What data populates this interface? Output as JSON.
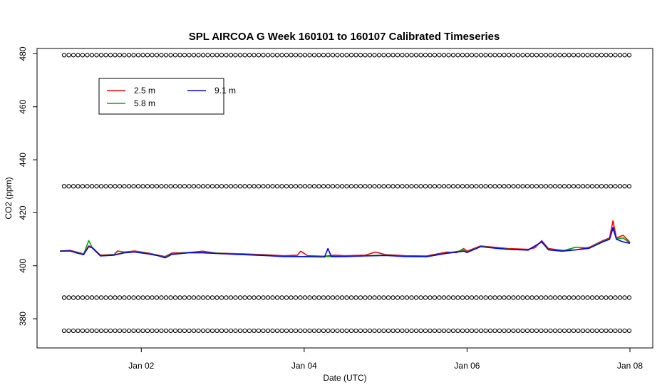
{
  "chart_data": {
    "type": "line",
    "title": "SPL AIRCOA G  Week 160101 to 160107  Calibrated Timeseries",
    "xlabel": "Date (UTC)",
    "ylabel": "CO2 (ppm)",
    "xlim": [
      "2016-01-01T00:00",
      "2016-01-08T00:00"
    ],
    "ylim": [
      369,
      482
    ],
    "x_ticks": [
      {
        "date": "2016-01-02T00:00",
        "label": "Jan 02"
      },
      {
        "date": "2016-01-04T00:00",
        "label": "Jan 04"
      },
      {
        "date": "2016-01-06T00:00",
        "label": "Jan 06"
      },
      {
        "date": "2016-01-08T00:00",
        "label": "Jan 08"
      }
    ],
    "y_ticks": [
      380,
      400,
      420,
      440,
      460,
      480
    ],
    "legend": {
      "placement": "top-left",
      "entries": [
        {
          "label": "2.5 m",
          "color": "#ff0000"
        },
        {
          "label": "9.1 m",
          "color": "#0000ff"
        },
        {
          "label": "5.8 m",
          "color": "#00aa00"
        }
      ]
    },
    "series": [
      {
        "name": "2.5 m",
        "color": "#ff0000",
        "points": [
          [
            "2016-01-01T00:00",
            405.6
          ],
          [
            "2016-01-01T03:00",
            405.8
          ],
          [
            "2016-01-01T05:00",
            405.2
          ],
          [
            "2016-01-01T07:00",
            404.5
          ],
          [
            "2016-01-01T08:30",
            407.5
          ],
          [
            "2016-01-01T09:30",
            407.0
          ],
          [
            "2016-01-01T12:00",
            404.0
          ],
          [
            "2016-01-01T16:00",
            404.3
          ],
          [
            "2016-01-01T17:00",
            405.6
          ],
          [
            "2016-01-01T19:00",
            405.2
          ],
          [
            "2016-01-01T22:00",
            405.6
          ],
          [
            "2016-01-02T02:00",
            404.8
          ],
          [
            "2016-01-02T05:00",
            404.0
          ],
          [
            "2016-01-02T07:00",
            403.5
          ],
          [
            "2016-01-02T09:00",
            404.8
          ],
          [
            "2016-01-02T14:00",
            405.0
          ],
          [
            "2016-01-02T18:00",
            405.5
          ],
          [
            "2016-01-02T22:00",
            404.8
          ],
          [
            "2016-01-03T06:00",
            404.5
          ],
          [
            "2016-01-03T12:00",
            404.2
          ],
          [
            "2016-01-03T18:00",
            403.8
          ],
          [
            "2016-01-03T22:00",
            404.0
          ],
          [
            "2016-01-03T23:00",
            405.5
          ],
          [
            "2016-01-04T01:00",
            403.8
          ],
          [
            "2016-01-04T06:00",
            403.6
          ],
          [
            "2016-01-04T09:00",
            404.0
          ],
          [
            "2016-01-04T12:00",
            403.8
          ],
          [
            "2016-01-04T18:00",
            404.0
          ],
          [
            "2016-01-04T21:00",
            405.2
          ],
          [
            "2016-01-05T00:00",
            404.2
          ],
          [
            "2016-01-05T06:00",
            403.8
          ],
          [
            "2016-01-05T12:00",
            403.7
          ],
          [
            "2016-01-05T18:00",
            405.2
          ],
          [
            "2016-01-05T21:00",
            405.0
          ],
          [
            "2016-01-05T23:00",
            406.5
          ],
          [
            "2016-01-06T00:00",
            405.5
          ],
          [
            "2016-01-06T04:00",
            407.5
          ],
          [
            "2016-01-06T08:00",
            407.0
          ],
          [
            "2016-01-06T12:00",
            406.5
          ],
          [
            "2016-01-06T18:00",
            406.2
          ],
          [
            "2016-01-06T20:00",
            406.8
          ],
          [
            "2016-01-06T22:00",
            409.5
          ],
          [
            "2016-01-07T00:00",
            406.5
          ],
          [
            "2016-01-07T04:00",
            405.8
          ],
          [
            "2016-01-07T08:00",
            406.0
          ],
          [
            "2016-01-07T12:00",
            407.0
          ],
          [
            "2016-01-07T16:00",
            409.5
          ],
          [
            "2016-01-07T18:00",
            410.5
          ],
          [
            "2016-01-07T19:00",
            417.0
          ],
          [
            "2016-01-07T20:00",
            410.5
          ],
          [
            "2016-01-07T22:00",
            411.5
          ],
          [
            "2016-01-08T00:00",
            408.8
          ]
        ]
      },
      {
        "name": "5.8 m",
        "color": "#00aa00",
        "points": [
          [
            "2016-01-01T00:00",
            405.6
          ],
          [
            "2016-01-01T03:00",
            405.6
          ],
          [
            "2016-01-01T05:00",
            405.0
          ],
          [
            "2016-01-01T07:00",
            404.3
          ],
          [
            "2016-01-01T08:30",
            409.5
          ],
          [
            "2016-01-01T09:30",
            407.0
          ],
          [
            "2016-01-01T12:00",
            403.8
          ],
          [
            "2016-01-01T16:00",
            404.2
          ],
          [
            "2016-01-01T19:00",
            405.0
          ],
          [
            "2016-01-01T22:00",
            405.3
          ],
          [
            "2016-01-02T02:00",
            404.6
          ],
          [
            "2016-01-02T05:00",
            403.9
          ],
          [
            "2016-01-02T07:00",
            403.2
          ],
          [
            "2016-01-02T09:00",
            404.5
          ],
          [
            "2016-01-02T14:00",
            405.0
          ],
          [
            "2016-01-02T18:00",
            405.0
          ],
          [
            "2016-01-03T06:00",
            404.3
          ],
          [
            "2016-01-03T12:00",
            404.0
          ],
          [
            "2016-01-03T18:00",
            403.6
          ],
          [
            "2016-01-04T01:00",
            403.5
          ],
          [
            "2016-01-04T06:00",
            403.4
          ],
          [
            "2016-01-04T12:00",
            403.6
          ],
          [
            "2016-01-04T18:00",
            403.8
          ],
          [
            "2016-01-05T00:00",
            404.0
          ],
          [
            "2016-01-05T06:00",
            403.6
          ],
          [
            "2016-01-05T12:00",
            403.5
          ],
          [
            "2016-01-05T18:00",
            404.8
          ],
          [
            "2016-01-05T23:00",
            405.8
          ],
          [
            "2016-01-06T00:00",
            405.2
          ],
          [
            "2016-01-06T04:00",
            407.3
          ],
          [
            "2016-01-06T08:00",
            406.8
          ],
          [
            "2016-01-06T12:00",
            406.3
          ],
          [
            "2016-01-06T18:00",
            406.0
          ],
          [
            "2016-01-06T22:00",
            409.0
          ],
          [
            "2016-01-07T00:00",
            406.2
          ],
          [
            "2016-01-07T04:00",
            405.6
          ],
          [
            "2016-01-07T08:00",
            407.0
          ],
          [
            "2016-01-07T12:00",
            406.8
          ],
          [
            "2016-01-07T16:00",
            409.2
          ],
          [
            "2016-01-07T18:00",
            410.2
          ],
          [
            "2016-01-07T19:00",
            414.0
          ],
          [
            "2016-01-07T20:00",
            410.2
          ],
          [
            "2016-01-07T22:00",
            410.5
          ],
          [
            "2016-01-08T00:00",
            408.6
          ]
        ]
      },
      {
        "name": "9.1 m",
        "color": "#0000ff",
        "points": [
          [
            "2016-01-01T00:00",
            405.5
          ],
          [
            "2016-01-01T03:00",
            405.6
          ],
          [
            "2016-01-01T05:00",
            404.8
          ],
          [
            "2016-01-01T07:00",
            404.2
          ],
          [
            "2016-01-01T08:30",
            407.2
          ],
          [
            "2016-01-01T09:30",
            406.8
          ],
          [
            "2016-01-01T12:00",
            403.7
          ],
          [
            "2016-01-01T16:00",
            404.0
          ],
          [
            "2016-01-01T19:00",
            404.9
          ],
          [
            "2016-01-01T22:00",
            405.2
          ],
          [
            "2016-01-02T02:00",
            404.5
          ],
          [
            "2016-01-02T05:00",
            403.8
          ],
          [
            "2016-01-02T07:00",
            403.0
          ],
          [
            "2016-01-02T09:00",
            404.3
          ],
          [
            "2016-01-02T14:00",
            404.9
          ],
          [
            "2016-01-02T18:00",
            404.9
          ],
          [
            "2016-01-03T06:00",
            404.2
          ],
          [
            "2016-01-03T12:00",
            403.9
          ],
          [
            "2016-01-03T18:00",
            403.5
          ],
          [
            "2016-01-04T01:00",
            403.4
          ],
          [
            "2016-01-04T06:00",
            403.3
          ],
          [
            "2016-01-04T07:00",
            406.5
          ],
          [
            "2016-01-04T08:00",
            403.4
          ],
          [
            "2016-01-04T12:00",
            403.5
          ],
          [
            "2016-01-04T18:00",
            403.7
          ],
          [
            "2016-01-05T00:00",
            403.9
          ],
          [
            "2016-01-05T06:00",
            403.5
          ],
          [
            "2016-01-05T12:00",
            403.4
          ],
          [
            "2016-01-05T18:00",
            404.7
          ],
          [
            "2016-01-05T23:00",
            405.5
          ],
          [
            "2016-01-06T00:00",
            405.0
          ],
          [
            "2016-01-06T04:00",
            407.2
          ],
          [
            "2016-01-06T08:00",
            406.7
          ],
          [
            "2016-01-06T12:00",
            406.2
          ],
          [
            "2016-01-06T18:00",
            405.9
          ],
          [
            "2016-01-06T22:00",
            409.0
          ],
          [
            "2016-01-07T00:00",
            406.0
          ],
          [
            "2016-01-07T04:00",
            405.5
          ],
          [
            "2016-01-07T08:00",
            406.0
          ],
          [
            "2016-01-07T12:00",
            406.6
          ],
          [
            "2016-01-07T16:00",
            409.0
          ],
          [
            "2016-01-07T18:00",
            410.0
          ],
          [
            "2016-01-07T19:00",
            414.5
          ],
          [
            "2016-01-07T20:00",
            410.0
          ],
          [
            "2016-01-07T22:00",
            409.0
          ],
          [
            "2016-01-08T00:00",
            408.5
          ]
        ]
      }
    ],
    "reference_marker_rows": [
      {
        "y": 479.5,
        "marker": "o"
      },
      {
        "y": 430.0,
        "marker": "o"
      },
      {
        "y": 388.0,
        "marker": "o"
      },
      {
        "y": 375.5,
        "marker": "o"
      }
    ]
  }
}
